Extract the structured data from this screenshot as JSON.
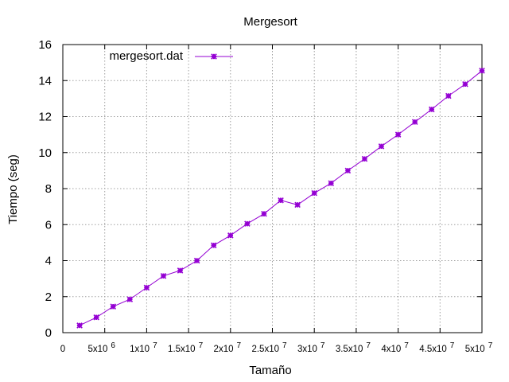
{
  "chart_data": {
    "type": "line",
    "title": "Mergesort",
    "xlabel": "Tamaño",
    "ylabel": "Tiempo (seg)",
    "xlim": [
      0,
      50000000
    ],
    "ylim": [
      0,
      16
    ],
    "grid": true,
    "legend_position": "top-left",
    "x_ticks": [
      {
        "value": 0,
        "label": "0",
        "sup": ""
      },
      {
        "value": 5000000,
        "label": "5x10",
        "sup": "6"
      },
      {
        "value": 10000000,
        "label": "1x10",
        "sup": "7"
      },
      {
        "value": 15000000,
        "label": "1.5x10",
        "sup": "7"
      },
      {
        "value": 20000000,
        "label": "2x10",
        "sup": "7"
      },
      {
        "value": 25000000,
        "label": "2.5x10",
        "sup": "7"
      },
      {
        "value": 30000000,
        "label": "3x10",
        "sup": "7"
      },
      {
        "value": 35000000,
        "label": "3.5x10",
        "sup": "7"
      },
      {
        "value": 40000000,
        "label": "4x10",
        "sup": "7"
      },
      {
        "value": 45000000,
        "label": "4.5x10",
        "sup": "7"
      },
      {
        "value": 50000000,
        "label": "5x10",
        "sup": "7"
      }
    ],
    "y_ticks": [
      {
        "value": 0,
        "label": "0"
      },
      {
        "value": 2,
        "label": "2"
      },
      {
        "value": 4,
        "label": "4"
      },
      {
        "value": 6,
        "label": "6"
      },
      {
        "value": 8,
        "label": "8"
      },
      {
        "value": 10,
        "label": "10"
      },
      {
        "value": 12,
        "label": "12"
      },
      {
        "value": 14,
        "label": "14"
      },
      {
        "value": 16,
        "label": "16"
      }
    ],
    "series": [
      {
        "name": "mergesort.dat",
        "color": "#9400d3",
        "marker": "star",
        "x": [
          2000000,
          4000000,
          6000000,
          8000000,
          10000000,
          12000000,
          14000000,
          16000000,
          18000000,
          20000000,
          22000000,
          24000000,
          26000000,
          28000000,
          30000000,
          32000000,
          34000000,
          36000000,
          38000000,
          40000000,
          42000000,
          44000000,
          46000000,
          48000000,
          50000000
        ],
        "y": [
          0.4,
          0.85,
          1.45,
          1.85,
          2.5,
          3.15,
          3.45,
          4.0,
          4.85,
          5.4,
          6.05,
          6.6,
          7.35,
          7.1,
          7.75,
          8.3,
          9.0,
          9.65,
          10.35,
          11.0,
          11.7,
          12.4,
          13.15,
          13.8,
          14.55
        ]
      }
    ]
  }
}
